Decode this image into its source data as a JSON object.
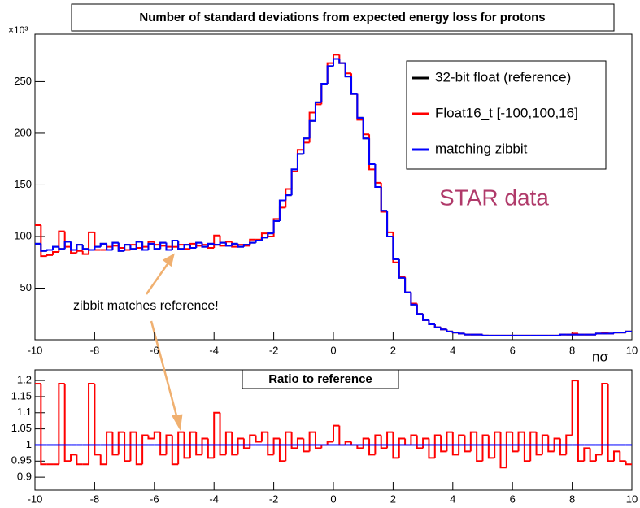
{
  "chart_data": [
    {
      "type": "histogram",
      "title": "Number of standard deviations from expected energy loss for protons",
      "x_label": "nσ",
      "y_multiplier": "×10³",
      "annotations": [
        "STAR data",
        "zibbit matches reference!"
      ],
      "legend": "top-right",
      "bins": [
        -10,
        -9.8,
        -9.6,
        -9.4,
        -9.2,
        -9,
        -8.8,
        -8.6,
        -8.4,
        -8.2,
        -8,
        -7.8,
        -7.6,
        -7.4,
        -7.2,
        -7,
        -6.8,
        -6.6,
        -6.4,
        -6.2,
        -6,
        -5.8,
        -5.6,
        -5.4,
        -5.2,
        -5,
        -4.8,
        -4.6,
        -4.4,
        -4.2,
        -4,
        -3.8,
        -3.6,
        -3.4,
        -3.2,
        -3,
        -2.8,
        -2.6,
        -2.4,
        -2.2,
        -2,
        -1.8,
        -1.6,
        -1.4,
        -1.2,
        -1,
        -0.8,
        -0.6,
        -0.4,
        -0.2,
        0,
        0.2,
        0.4,
        0.6,
        0.8,
        1,
        1.2,
        1.4,
        1.6,
        1.8,
        2,
        2.2,
        2.4,
        2.6,
        2.8,
        3,
        3.2,
        3.4,
        3.6,
        3.8,
        4,
        4.2,
        4.4,
        4.6,
        4.8,
        5,
        5.2,
        5.4,
        5.6,
        5.8,
        6,
        6.2,
        6.4,
        6.6,
        6.8,
        7,
        7.2,
        7.4,
        7.6,
        7.8,
        8,
        8.2,
        8.4,
        8.6,
        8.8,
        9,
        9.2,
        9.4,
        9.6,
        9.8,
        10
      ],
      "series": [
        {
          "name": "32-bit float (reference)",
          "color": "#000000",
          "values": [
            93,
            86,
            87,
            90,
            88,
            95,
            87,
            92,
            88,
            87,
            90,
            93,
            87,
            94,
            86,
            92,
            88,
            95,
            87,
            93,
            88,
            94,
            87,
            96,
            88,
            92,
            89,
            94,
            90,
            93,
            92,
            94,
            91,
            93,
            90,
            92,
            94,
            96,
            99,
            103,
            115,
            135,
            140,
            165,
            180,
            195,
            212,
            230,
            248,
            265,
            272,
            268,
            255,
            238,
            215,
            195,
            170,
            148,
            125,
            100,
            78,
            60,
            46,
            34,
            25,
            19,
            15,
            12,
            10,
            8,
            7,
            6,
            5,
            5,
            5,
            4,
            4,
            4,
            4,
            4,
            4,
            4,
            4,
            4,
            4,
            4,
            4,
            4,
            5,
            5,
            5,
            5,
            5,
            5,
            6,
            6,
            6,
            7,
            7,
            8
          ]
        },
        {
          "name": "Float16_t [-100,100,16]",
          "color": "#ff0000",
          "values": [
            111,
            81,
            82,
            85,
            105,
            90,
            84,
            86,
            83,
            104,
            87,
            87,
            90,
            91,
            89,
            87,
            92,
            89,
            90,
            95,
            92,
            91,
            90,
            90,
            92,
            88,
            93,
            91,
            92,
            89,
            101,
            91,
            95,
            90,
            92,
            91,
            97,
            97,
            103,
            100,
            117,
            128,
            146,
            163,
            184,
            191,
            220,
            228,
            248,
            268,
            276,
            268,
            258,
            238,
            213,
            199,
            165,
            152,
            124,
            104,
            75,
            61,
            46,
            35,
            25,
            19,
            15,
            12,
            10,
            8,
            7,
            6,
            5,
            5,
            5,
            4,
            4,
            4,
            4,
            4,
            4,
            4,
            4,
            4,
            4,
            4,
            4,
            4,
            5,
            5,
            6,
            5,
            5,
            5,
            6,
            7,
            6,
            7,
            7,
            8
          ]
        },
        {
          "name": "matching zibbit",
          "color": "#0000ff",
          "values": [
            93,
            86,
            87,
            90,
            88,
            95,
            87,
            92,
            88,
            87,
            90,
            93,
            87,
            94,
            86,
            92,
            88,
            95,
            87,
            93,
            88,
            94,
            87,
            96,
            88,
            92,
            89,
            94,
            90,
            93,
            92,
            94,
            91,
            93,
            90,
            92,
            94,
            96,
            99,
            103,
            115,
            135,
            140,
            165,
            180,
            195,
            212,
            230,
            248,
            265,
            272,
            268,
            255,
            238,
            215,
            195,
            170,
            148,
            125,
            100,
            78,
            60,
            46,
            34,
            25,
            19,
            15,
            12,
            10,
            8,
            7,
            6,
            5,
            5,
            5,
            4,
            4,
            4,
            4,
            4,
            4,
            4,
            4,
            4,
            4,
            4,
            4,
            4,
            5,
            5,
            5,
            5,
            5,
            5,
            6,
            6,
            6,
            7,
            7,
            8
          ]
        }
      ],
      "xlim": [
        -10,
        10
      ],
      "xticks": [
        -10,
        -8,
        -6,
        -4,
        -2,
        0,
        2,
        4,
        6,
        8,
        10
      ],
      "ylim": [
        0,
        296
      ],
      "yticks": [
        50,
        100,
        150,
        200,
        250
      ]
    },
    {
      "type": "histogram",
      "title": "Ratio to reference",
      "bins": [
        -10,
        -9.8,
        -9.6,
        -9.4,
        -9.2,
        -9,
        -8.8,
        -8.6,
        -8.4,
        -8.2,
        -8,
        -7.8,
        -7.6,
        -7.4,
        -7.2,
        -7,
        -6.8,
        -6.6,
        -6.4,
        -6.2,
        -6,
        -5.8,
        -5.6,
        -5.4,
        -5.2,
        -5,
        -4.8,
        -4.6,
        -4.4,
        -4.2,
        -4,
        -3.8,
        -3.6,
        -3.4,
        -3.2,
        -3,
        -2.8,
        -2.6,
        -2.4,
        -2.2,
        -2,
        -1.8,
        -1.6,
        -1.4,
        -1.2,
        -1,
        -0.8,
        -0.6,
        -0.4,
        -0.2,
        0,
        0.2,
        0.4,
        0.6,
        0.8,
        1,
        1.2,
        1.4,
        1.6,
        1.8,
        2,
        2.2,
        2.4,
        2.6,
        2.8,
        3,
        3.2,
        3.4,
        3.6,
        3.8,
        4,
        4.2,
        4.4,
        4.6,
        4.8,
        5,
        5.2,
        5.4,
        5.6,
        5.8,
        6,
        6.2,
        6.4,
        6.6,
        6.8,
        7,
        7.2,
        7.4,
        7.6,
        7.8,
        8,
        8.2,
        8.4,
        8.6,
        8.8,
        9,
        9.2,
        9.4,
        9.6,
        9.8,
        10
      ],
      "series": [
        {
          "color": "#ff0000",
          "values": [
            1.19,
            0.94,
            0.94,
            0.94,
            1.19,
            0.95,
            0.97,
            0.94,
            0.94,
            1.19,
            0.97,
            0.94,
            1.04,
            0.97,
            1.04,
            0.95,
            1.04,
            0.94,
            1.03,
            1.02,
            1.04,
            0.97,
            1.03,
            0.94,
            1.04,
            0.96,
            1.04,
            0.97,
            1.02,
            0.96,
            1.1,
            0.97,
            1.04,
            0.97,
            1.02,
            0.99,
            1.03,
            1.01,
            1.04,
            0.97,
            1.02,
            0.95,
            1.04,
            0.99,
            1.02,
            0.98,
            1.04,
            0.99,
            1,
            1.01,
            1.06,
            1,
            1.01,
            1,
            0.99,
            1.02,
            0.97,
            1.03,
            0.99,
            1.04,
            0.96,
            1.02,
            1,
            1.03,
            0.99,
            1.02,
            0.96,
            1.03,
            0.98,
            1.04,
            0.97,
            1.03,
            0.98,
            1.04,
            0.95,
            1.03,
            0.96,
            1.04,
            0.93,
            1.04,
            0.98,
            1.04,
            0.95,
            1.04,
            0.97,
            1.03,
            0.98,
            1.02,
            0.97,
            1.03,
            1.2,
            0.95,
            0.99,
            0.95,
            0.97,
            1.19,
            0.95,
            0.98,
            0.95,
            0.94
          ]
        },
        {
          "color": "#0000ff",
          "values": [
            1,
            1,
            1,
            1,
            1,
            1,
            1,
            1,
            1,
            1,
            1,
            1,
            1,
            1,
            1,
            1,
            1,
            1,
            1,
            1,
            1,
            1,
            1,
            1,
            1,
            1,
            1,
            1,
            1,
            1,
            1,
            1,
            1,
            1,
            1,
            1,
            1,
            1,
            1,
            1,
            1,
            1,
            1,
            1,
            1,
            1,
            1,
            1,
            1,
            1,
            1,
            1,
            1,
            1,
            1,
            1,
            1,
            1,
            1,
            1,
            1,
            1,
            1,
            1,
            1,
            1,
            1,
            1,
            1,
            1,
            1,
            1,
            1,
            1,
            1,
            1,
            1,
            1,
            1,
            1,
            1,
            1,
            1,
            1,
            1,
            1,
            1,
            1,
            1,
            1,
            1,
            1,
            1,
            1,
            1,
            1,
            1,
            1,
            1,
            1
          ]
        }
      ],
      "xlim": [
        -10,
        10
      ],
      "xticks": [
        -10,
        -8,
        -6,
        -4,
        -2,
        0,
        2,
        4,
        6,
        8,
        10
      ],
      "ylim": [
        0.86,
        1.233
      ],
      "yticks": [
        0.9,
        0.95,
        1,
        1.05,
        1.1,
        1.15,
        1.2
      ]
    }
  ]
}
